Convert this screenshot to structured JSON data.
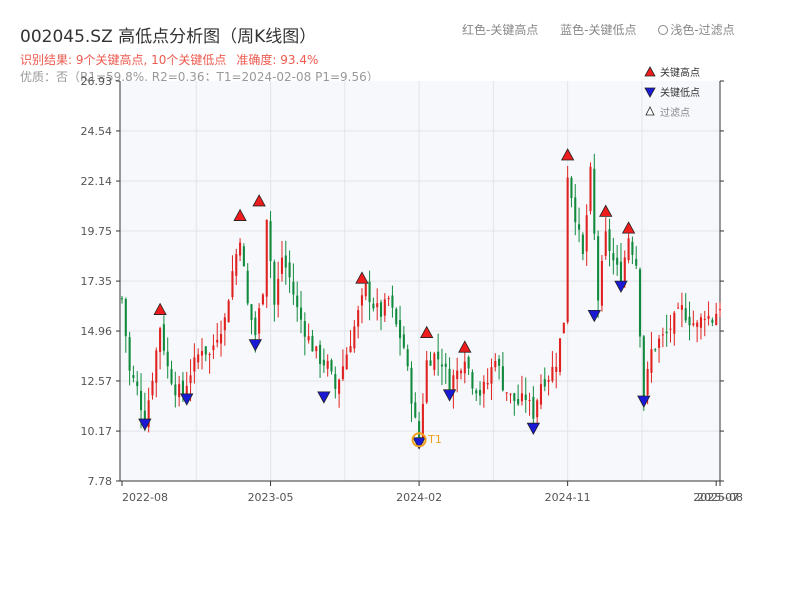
{
  "header": {
    "title": "002045.SZ 高低点分析图（周K线图）",
    "legend_hint": {
      "red": "红色-关键高点",
      "blue": "蓝色-关键低点",
      "filtered": "浅色-过滤点"
    },
    "result_text": "识别结果: 9个关键高点, 10个关键低点",
    "accuracy_text": "准确度: 93.4%",
    "quality_text": "优质：否（R1=59.8%, R2=0.36；T1=2024-02-08 P1=9.56）"
  },
  "colors": {
    "up": "#e0211f",
    "down": "#118a3e",
    "high_marker": "#ee1c1c",
    "low_marker": "#1a1ad6",
    "t1_marker": "#f0a020",
    "plot_bg": "#f6f8fb",
    "grid": "#e1e5ea"
  },
  "chart_data": {
    "type": "candlestick",
    "ylim": [
      7.78,
      26.93
    ],
    "y_ticks": [
      7.78,
      10.17,
      12.57,
      14.96,
      17.35,
      19.75,
      22.14,
      24.54,
      26.93
    ],
    "x_range": [
      0,
      157
    ],
    "x_ticks": [
      {
        "x": 0,
        "label": "2022-08"
      },
      {
        "x": 39,
        "label": "2023-05"
      },
      {
        "x": 78,
        "label": "2024-02"
      },
      {
        "x": 117,
        "label": "2024-11"
      },
      {
        "x": 156,
        "label": "2025-07"
      },
      {
        "x": 157,
        "label": "2025-08"
      }
    ],
    "series_legend": {
      "high": "关键高点",
      "low": "关键低点",
      "filtered": "过滤点"
    },
    "close_path": [
      [
        0,
        16.5
      ],
      [
        2,
        13.0
      ],
      [
        4,
        12.2
      ],
      [
        6,
        10.6
      ],
      [
        8,
        12.8
      ],
      [
        10,
        15.2
      ],
      [
        12,
        13.2
      ],
      [
        14,
        12.2
      ],
      [
        16,
        12.0
      ],
      [
        18,
        13.0
      ],
      [
        21,
        14.2
      ],
      [
        23,
        13.8
      ],
      [
        25,
        14.8
      ],
      [
        27,
        15.5
      ],
      [
        29,
        17.8
      ],
      [
        31,
        19.5
      ],
      [
        33,
        16.2
      ],
      [
        35,
        14.8
      ],
      [
        37,
        17.0
      ],
      [
        38,
        20.5
      ],
      [
        40,
        16.2
      ],
      [
        42,
        18.5
      ],
      [
        44,
        17.5
      ],
      [
        46,
        16.0
      ],
      [
        48,
        15.0
      ],
      [
        50,
        14.2
      ],
      [
        52,
        13.6
      ],
      [
        54,
        13.3
      ],
      [
        56,
        12.2
      ],
      [
        58,
        13.3
      ],
      [
        60,
        14.5
      ],
      [
        62,
        15.8
      ],
      [
        64,
        17.0
      ],
      [
        66,
        16.2
      ],
      [
        68,
        15.8
      ],
      [
        70,
        16.5
      ],
      [
        72,
        15.2
      ],
      [
        74,
        14.2
      ],
      [
        76,
        11.8
      ],
      [
        77,
        10.6
      ],
      [
        78,
        9.8
      ],
      [
        80,
        13.5
      ],
      [
        82,
        13.8
      ],
      [
        84,
        13.5
      ],
      [
        86,
        12.5
      ],
      [
        88,
        13.0
      ],
      [
        90,
        13.8
      ],
      [
        92,
        12.5
      ],
      [
        94,
        12.0
      ],
      [
        96,
        12.5
      ],
      [
        98,
        13.8
      ],
      [
        100,
        12.4
      ],
      [
        102,
        11.8
      ],
      [
        104,
        11.5
      ],
      [
        106,
        11.8
      ],
      [
        108,
        11.0
      ],
      [
        110,
        12.5
      ],
      [
        112,
        12.8
      ],
      [
        114,
        13.5
      ],
      [
        116,
        15.5
      ],
      [
        117,
        22.5
      ],
      [
        119,
        20.5
      ],
      [
        121,
        18.5
      ],
      [
        123,
        22.5
      ],
      [
        125,
        16.5
      ],
      [
        127,
        19.5
      ],
      [
        129,
        18.3
      ],
      [
        131,
        17.5
      ],
      [
        133,
        19.5
      ],
      [
        135,
        18.2
      ],
      [
        137,
        11.8
      ],
      [
        139,
        14.0
      ],
      [
        141,
        14.5
      ],
      [
        143,
        14.8
      ],
      [
        145,
        15.5
      ],
      [
        147,
        16.0
      ],
      [
        149,
        15.5
      ],
      [
        151,
        15.2
      ],
      [
        153,
        15.8
      ],
      [
        155,
        15.5
      ],
      [
        157,
        16.2
      ]
    ],
    "high_points": [
      {
        "x": 10,
        "y": 15.7
      },
      {
        "x": 31,
        "y": 20.2
      },
      {
        "x": 36,
        "y": 20.9
      },
      {
        "x": 63,
        "y": 17.2
      },
      {
        "x": 80,
        "y": 14.6
      },
      {
        "x": 90,
        "y": 13.9
      },
      {
        "x": 117,
        "y": 23.1
      },
      {
        "x": 127,
        "y": 20.4
      },
      {
        "x": 133,
        "y": 19.6
      }
    ],
    "low_points": [
      {
        "x": 6,
        "y": 10.7
      },
      {
        "x": 17,
        "y": 11.9
      },
      {
        "x": 35,
        "y": 14.5
      },
      {
        "x": 53,
        "y": 12.0
      },
      {
        "x": 78,
        "y": 9.8
      },
      {
        "x": 86,
        "y": 12.1
      },
      {
        "x": 108,
        "y": 10.5
      },
      {
        "x": 124,
        "y": 15.9
      },
      {
        "x": 131,
        "y": 17.3
      },
      {
        "x": 137,
        "y": 11.8
      }
    ],
    "t1": {
      "x": 78,
      "y": 9.8,
      "label": "T1"
    }
  }
}
